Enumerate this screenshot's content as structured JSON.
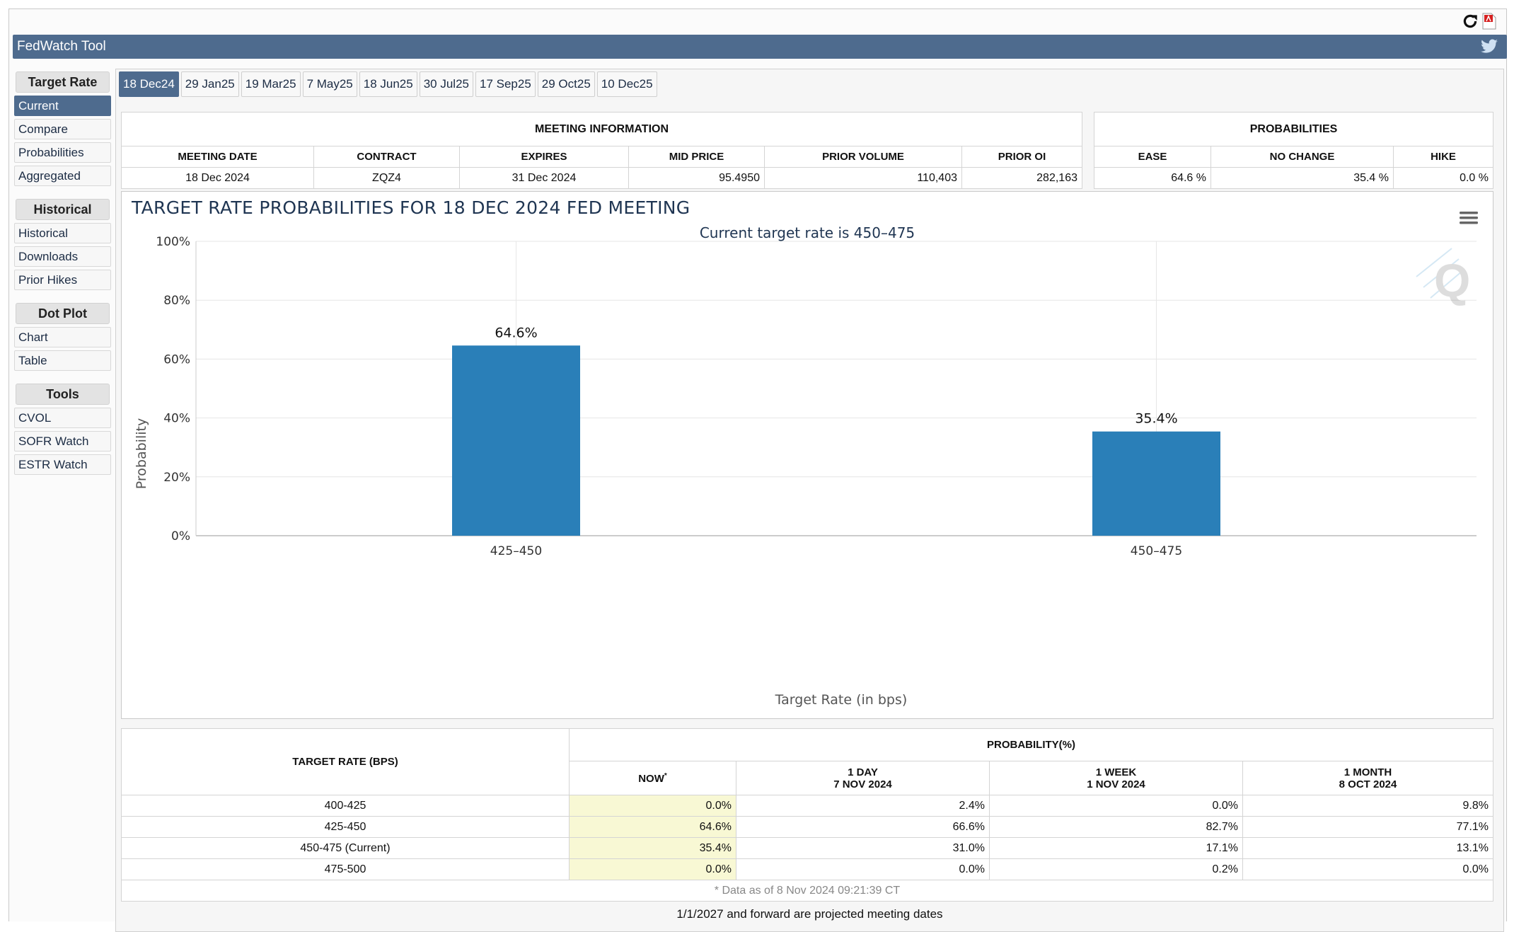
{
  "app": {
    "title": "FedWatch Tool"
  },
  "sidebar": {
    "sections": [
      {
        "header": "Target Rate",
        "items": [
          "Current",
          "Compare",
          "Probabilities",
          "Aggregated"
        ]
      },
      {
        "header": "Historical",
        "items": [
          "Historical",
          "Downloads",
          "Prior Hikes"
        ]
      },
      {
        "header": "Dot Plot",
        "items": [
          "Chart",
          "Table"
        ]
      },
      {
        "header": "Tools",
        "items": [
          "CVOL",
          "SOFR Watch",
          "ESTR Watch"
        ]
      }
    ],
    "active_item": "Current"
  },
  "tabs": [
    "18 Dec24",
    "29 Jan25",
    "19 Mar25",
    "7 May25",
    "18 Jun25",
    "30 Jul25",
    "17 Sep25",
    "29 Oct25",
    "10 Dec25"
  ],
  "meeting_info": {
    "title": "MEETING INFORMATION",
    "headers": [
      "MEETING DATE",
      "CONTRACT",
      "EXPIRES",
      "MID PRICE",
      "PRIOR VOLUME",
      "PRIOR OI"
    ],
    "values": [
      "18 Dec 2024",
      "ZQZ4",
      "31 Dec 2024",
      "95.4950",
      "110,403",
      "282,163"
    ]
  },
  "probabilities": {
    "title": "PROBABILITIES",
    "headers": [
      "EASE",
      "NO CHANGE",
      "HIKE"
    ],
    "values": [
      "64.6 %",
      "35.4 %",
      "0.0 %"
    ]
  },
  "chart_data": {
    "type": "bar",
    "title": "TARGET RATE PROBABILITIES FOR 18 DEC 2024 FED MEETING",
    "subtitle": "Current target rate is 450–475",
    "xlabel": "Target Rate (in bps)",
    "ylabel": "Probability",
    "categories": [
      "425–450",
      "450–475"
    ],
    "values": [
      64.6,
      35.4
    ],
    "data_labels": [
      "64.6%",
      "35.4%"
    ],
    "ylim": [
      0,
      100
    ],
    "yticks": [
      "0%",
      "20%",
      "40%",
      "60%",
      "80%",
      "100%"
    ],
    "bar_color": "#2a7fb8",
    "grid": true
  },
  "prob_table": {
    "col_target": "TARGET RATE (BPS)",
    "col_group": "PROBABILITY(%)",
    "now": "NOW",
    "now_mark": "*",
    "cols": [
      {
        "line1": "1 DAY",
        "line2": "7 NOV 2024"
      },
      {
        "line1": "1 WEEK",
        "line2": "1 NOV 2024"
      },
      {
        "line1": "1 MONTH",
        "line2": "8 OCT 2024"
      }
    ],
    "rows": [
      {
        "rate": "400-425",
        "now": "0.0%",
        "d1": "2.4%",
        "w1": "0.0%",
        "m1": "9.8%"
      },
      {
        "rate": "425-450",
        "now": "64.6%",
        "d1": "66.6%",
        "w1": "82.7%",
        "m1": "77.1%"
      },
      {
        "rate": "450-475 (Current)",
        "now": "35.4%",
        "d1": "31.0%",
        "w1": "17.1%",
        "m1": "13.1%"
      },
      {
        "rate": "475-500",
        "now": "0.0%",
        "d1": "0.0%",
        "w1": "0.2%",
        "m1": "0.0%"
      }
    ],
    "footnote": "* Data as of 8 Nov 2024 09:21:39 CT"
  },
  "projected_note": "1/1/2027 and forward are projected meeting dates"
}
